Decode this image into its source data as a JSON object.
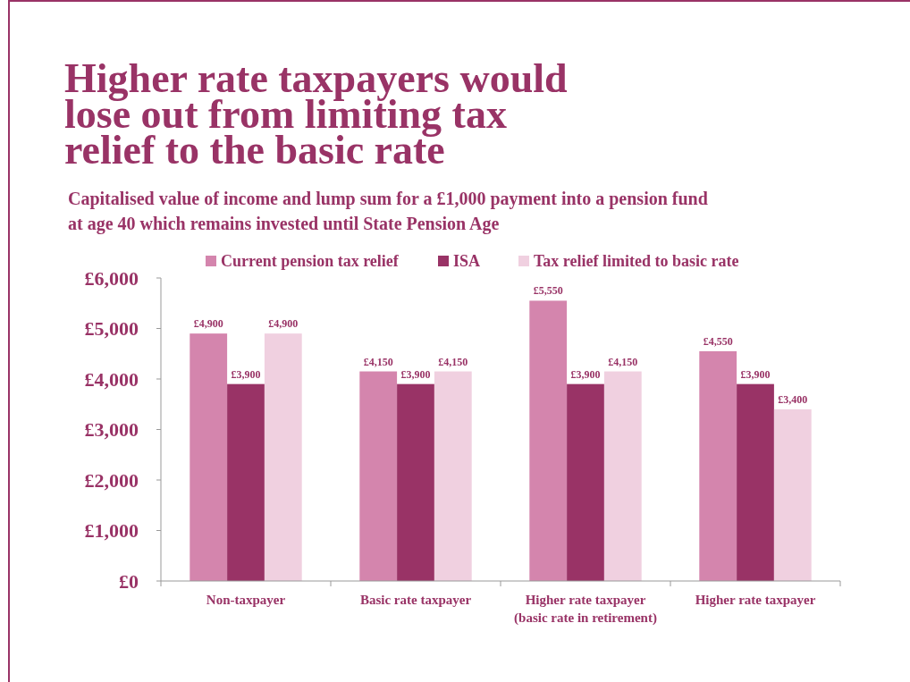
{
  "chart_data": {
    "type": "bar",
    "title": "Higher rate taxpayers would lose out from limiting tax relief to the basic rate",
    "subtitle": "Capitalised value of income and lump sum for a £1,000 payment into a pension fund at age 40 which remains invested until State Pension Age",
    "categories": [
      "Non-taxpayer",
      "Basic rate taxpayer",
      "Higher rate taxpayer (basic rate in retirement)",
      "Higher rate taxpayer"
    ],
    "series": [
      {
        "name": "Current pension tax relief",
        "color": "#d485ad",
        "values": [
          4900,
          4150,
          5550,
          4550
        ],
        "value_labels": [
          "£4,900",
          "£4,150",
          "£5,550",
          "£4,550"
        ]
      },
      {
        "name": "ISA",
        "color": "#993366",
        "values": [
          3900,
          3900,
          3900,
          3900
        ],
        "value_labels": [
          "£3,900",
          "£3,900",
          "£3,900",
          "£3,900"
        ]
      },
      {
        "name": "Tax relief limited to basic rate",
        "color": "#f0d0e0",
        "values": [
          4900,
          4150,
          4150,
          3400
        ],
        "value_labels": [
          "£4,900",
          "£4,150",
          "£4,150",
          "£3,400"
        ]
      }
    ],
    "ylim": [
      0,
      6000
    ],
    "yticks": [
      {
        "value": 0,
        "label": "£0"
      },
      {
        "value": 1000,
        "label": "£1,000"
      },
      {
        "value": 2000,
        "label": "£2,000"
      },
      {
        "value": 3000,
        "label": "£3,000"
      },
      {
        "value": 4000,
        "label": "£4,000"
      },
      {
        "value": 5000,
        "label": "£5,000"
      },
      {
        "value": 6000,
        "label": "£6,000"
      }
    ],
    "grid": false,
    "legend": "top"
  }
}
